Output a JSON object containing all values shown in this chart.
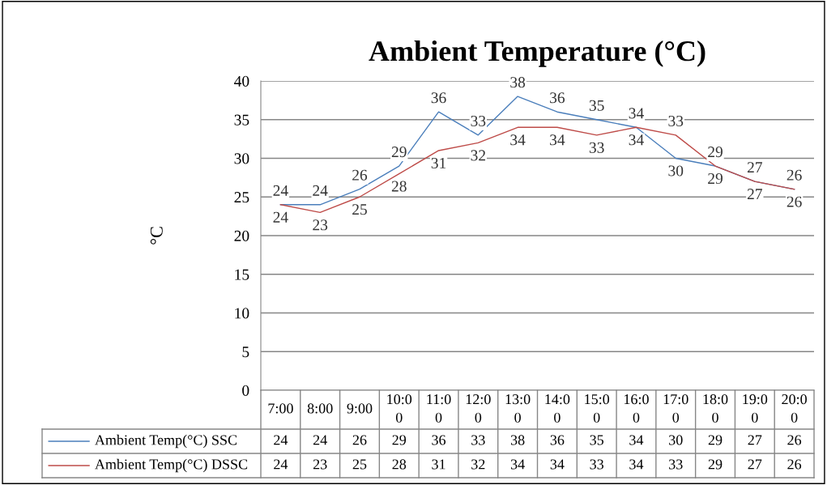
{
  "chart_data": {
    "type": "line",
    "title": "Ambient Temperature (°C)",
    "ylabel": "°C",
    "categories": [
      "7:00",
      "8:00",
      "9:00",
      "10:00",
      "11:00",
      "12:00",
      "13:00",
      "14:00",
      "15:00",
      "16:00",
      "17:00",
      "18:00",
      "19:00",
      "20:00"
    ],
    "series": [
      {
        "name": "Ambient Temp(°C) SSC",
        "color": "#4a7ebb",
        "values": [
          24,
          24,
          26,
          29,
          36,
          33,
          38,
          36,
          35,
          34,
          30,
          29,
          27,
          26
        ],
        "value_labels": [
          "24",
          "24",
          "26",
          "29",
          "36",
          "33",
          "38",
          "36",
          "35",
          "34",
          "30",
          "29",
          "27",
          "26"
        ]
      },
      {
        "name": "Ambient Temp(°C) DSSC",
        "color": "#be4b48",
        "values": [
          24,
          23,
          25,
          28,
          31,
          32,
          34,
          34,
          33,
          34,
          33,
          29,
          27,
          26
        ],
        "value_labels": [
          "24",
          "23",
          "25",
          "28",
          "31",
          "32",
          "34",
          "34",
          "33",
          "34",
          "33",
          "29",
          "27",
          "26"
        ]
      }
    ],
    "ylim": [
      0,
      40
    ],
    "yticks": [
      0,
      5,
      10,
      15,
      20,
      25,
      30,
      35,
      40
    ],
    "annotations": [
      "24",
      "24",
      "26",
      "29",
      "36",
      "33",
      "38",
      "36",
      "35",
      "34",
      "30",
      "29",
      "27",
      "26",
      "24",
      "23",
      "25",
      "28",
      "31",
      "32",
      "34",
      "34",
      "33",
      "34",
      "33",
      "29",
      "27",
      "26"
    ],
    "grid": "y",
    "legend": "bottom",
    "data_labels": true,
    "marker": "none",
    "line_style": "solid"
  }
}
